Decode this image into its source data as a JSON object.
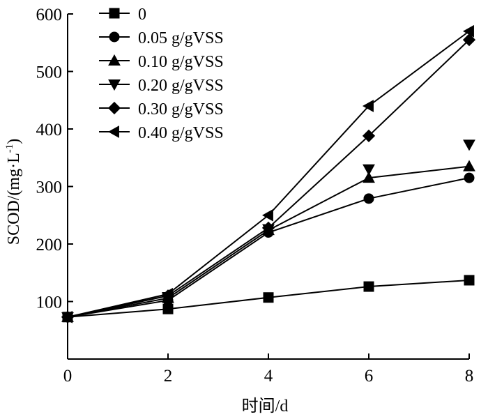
{
  "chart_data": {
    "type": "line",
    "title": "",
    "xlabel": "时间/d",
    "ylabel": "SCOD/(mg·L",
    "ylabel_superscript": "-1",
    "ylabel_suffix": ")",
    "x": [
      0,
      2,
      4,
      6,
      8
    ],
    "x_ticks": [
      "0",
      "2",
      "4",
      "6",
      "8"
    ],
    "y_ticks": [
      "100",
      "200",
      "300",
      "400",
      "500",
      "600"
    ],
    "xlim": [
      0,
      8
    ],
    "ylim": [
      0,
      600
    ],
    "grid": false,
    "legend_position": "top-left",
    "series": [
      {
        "name": "0",
        "marker": "square",
        "values": [
          73,
          87,
          107,
          126,
          137
        ]
      },
      {
        "name": "0.05 g/gVSS",
        "marker": "circle",
        "values": [
          73,
          102,
          220,
          279,
          315
        ]
      },
      {
        "name": "0.10 g/gVSS",
        "marker": "triangle-up",
        "values": [
          73,
          106,
          224,
          315,
          335
        ]
      },
      {
        "name": "0.20 g/gVSS",
        "marker": "triangle-down",
        "values": [
          73,
          108,
          226,
          330,
          373
        ]
      },
      {
        "name": "0.30 g/gVSS",
        "marker": "diamond",
        "values": [
          73,
          110,
          228,
          388,
          555
        ]
      },
      {
        "name": "0.40 g/gVSS",
        "marker": "triangle-left",
        "values": [
          73,
          113,
          250,
          440,
          570
        ]
      }
    ],
    "drawn_lines": [
      0,
      1,
      2,
      4,
      5
    ]
  }
}
